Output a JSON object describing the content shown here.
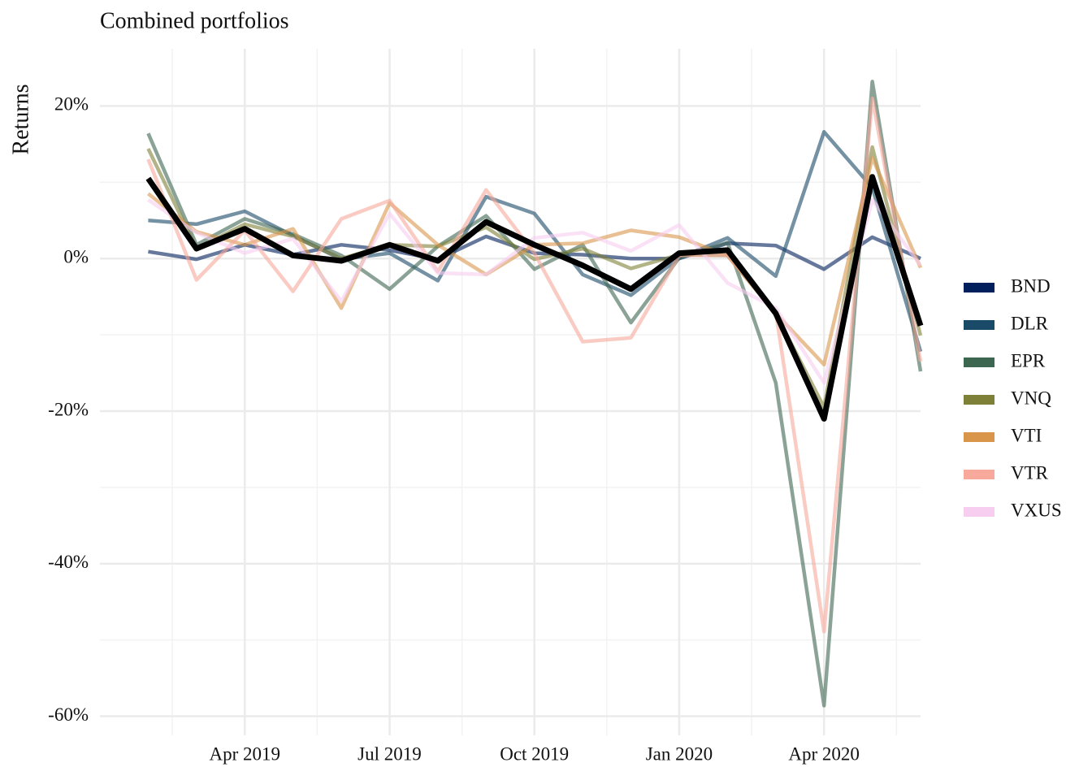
{
  "chart_data": {
    "type": "line",
    "title": "Combined portfolios",
    "y_label": "Returns",
    "x": [
      "2019-02",
      "2019-03",
      "2019-04",
      "2019-05",
      "2019-06",
      "2019-07",
      "2019-08",
      "2019-09",
      "2019-10",
      "2019-11",
      "2019-12",
      "2020-01",
      "2020-02",
      "2020-03",
      "2020-04",
      "2020-05",
      "2020-06"
    ],
    "xlim": [
      "2019-01",
      "2020-06"
    ],
    "xticks": [
      {
        "value": "2019-04",
        "label": "Apr 2019"
      },
      {
        "value": "2019-07",
        "label": "Jul 2019"
      },
      {
        "value": "2019-10",
        "label": "Oct 2019"
      },
      {
        "value": "2020-01",
        "label": "Jan 2020"
      },
      {
        "value": "2020-04",
        "label": "Apr 2020"
      }
    ],
    "ylim": [
      -62.5,
      27.5
    ],
    "yticks": [
      {
        "value": -60,
        "label": "-60%"
      },
      {
        "value": -40,
        "label": "-40%"
      },
      {
        "value": -20,
        "label": "-20%"
      },
      {
        "value": 0,
        "label": "0%"
      },
      {
        "value": 20,
        "label": "20%"
      }
    ],
    "grid": true,
    "legend": "right",
    "series": [
      {
        "name": "BND",
        "color": "#001f5c",
        "values": [
          0.9,
          -0.1,
          1.8,
          0.5,
          1.8,
          1.1,
          -0.1,
          2.9,
          0.7,
          0.5,
          0,
          0,
          2.0,
          1.7,
          -1.4,
          2.8,
          0
        ]
      },
      {
        "name": "DLR",
        "color": "#194a68",
        "values": [
          5.0,
          4.5,
          6.2,
          3.0,
          -0.1,
          0.7,
          -2.9,
          8.1,
          5.9,
          -2.1,
          -4.8,
          0.1,
          2.7,
          -2.3,
          16.6,
          9.3,
          -12.2
        ]
      },
      {
        "name": "EPR",
        "color": "#3d6651",
        "values": [
          16.4,
          1.8,
          5.2,
          3.2,
          0.4,
          -4.0,
          1.6,
          5.6,
          -1.4,
          1.8,
          -8.4,
          0.1,
          2.1,
          -16.3,
          -58.6,
          23.2,
          -14.8
        ]
      },
      {
        "name": "VNQ",
        "color": "#7f8037",
        "values": [
          14.4,
          1.3,
          4.5,
          2.9,
          0,
          1.8,
          1.6,
          4.1,
          -0.1,
          1.3,
          -1.3,
          0.5,
          0.4,
          -7.2,
          -19.5,
          14.6,
          -10.1
        ]
      },
      {
        "name": "VTI",
        "color": "#d9964b",
        "values": [
          8.5,
          3.5,
          1.8,
          3.9,
          -6.5,
          7.3,
          1.8,
          -2.1,
          1.8,
          2.0,
          3.7,
          2.8,
          0.4,
          -7.2,
          -13.9,
          13.2,
          -1.2
        ]
      },
      {
        "name": "VTR",
        "color": "#f7a99b",
        "values": [
          13.0,
          -2.8,
          3.7,
          -4.3,
          5.2,
          7.6,
          -1.7,
          9.0,
          0.7,
          -10.9,
          -10.4,
          0.4,
          0.4,
          -7.0,
          -48.9,
          21.0,
          -13.5
        ]
      },
      {
        "name": "VXUS",
        "color": "#f7cdf0",
        "values": [
          7.7,
          3.4,
          0.7,
          2.6,
          -5.6,
          5.9,
          -1.9,
          -2.1,
          2.7,
          3.4,
          1.0,
          4.4,
          -3.2,
          -6.5,
          -16.3,
          7.7,
          -0.9
        ]
      },
      {
        "color": "#000000",
        "values": [
          10.5,
          1.3,
          3.9,
          0.4,
          -0.3,
          1.8,
          -0.3,
          4.8,
          1.8,
          -0.9,
          -4.0,
          0.7,
          1.1,
          -7.2,
          -21.0,
          10.7,
          -8.8
        ]
      }
    ]
  }
}
